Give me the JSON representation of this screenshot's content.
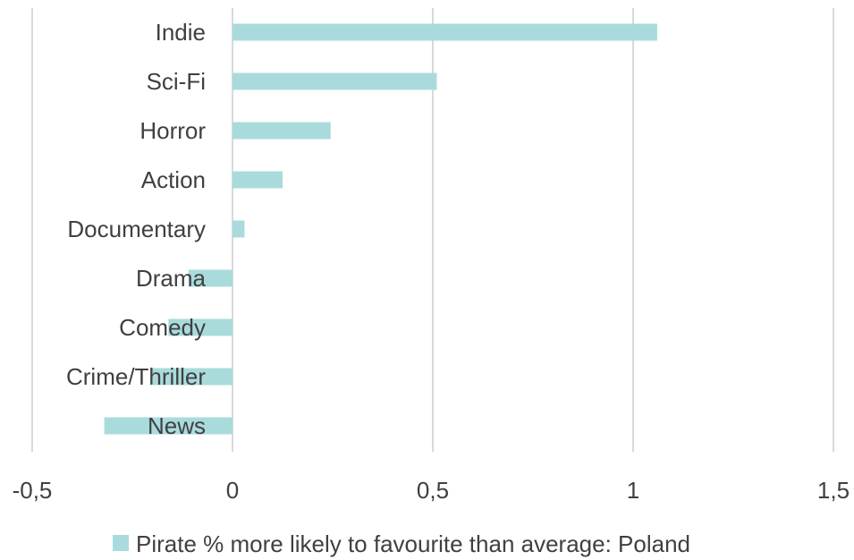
{
  "chart_data": {
    "type": "bar",
    "orientation": "horizontal",
    "categories": [
      "Indie",
      "Sci-Fi",
      "Horror",
      "Action",
      "Documentary",
      "Drama",
      "Comedy",
      "Crime/Thriller",
      "News"
    ],
    "series": [
      {
        "name": "Pirate % more likely to favourite than average: Poland",
        "values": [
          1.06,
          0.51,
          0.245,
          0.125,
          0.03,
          -0.11,
          -0.16,
          -0.2,
          -0.32
        ]
      }
    ],
    "xlim": [
      -0.5,
      1.5
    ],
    "xticks": [
      -0.5,
      0,
      0.5,
      1,
      1.5
    ],
    "xtick_labels": [
      "-0,5",
      "0",
      "0,5",
      "1",
      "1,5"
    ],
    "grid": "vertical",
    "legend_position": "bottom",
    "bar_color": "#a9dbdc",
    "grid_color": "#d9d9d9",
    "text_color": "#404040"
  }
}
